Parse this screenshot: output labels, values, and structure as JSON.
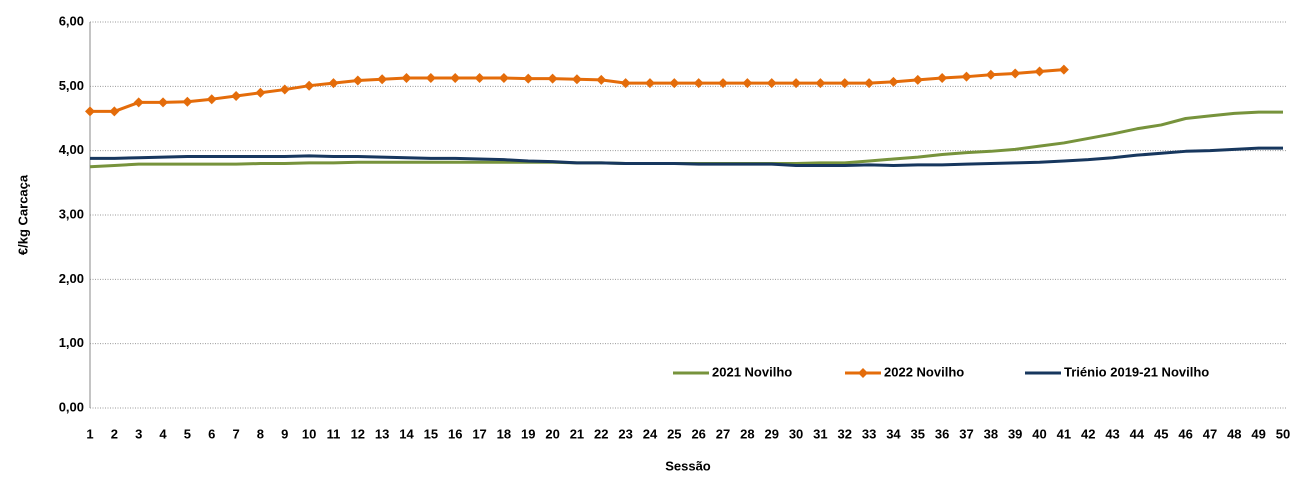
{
  "chart_data": {
    "type": "line",
    "x_label": "Sessão",
    "y_label": "€/kg Carcaça",
    "x": [
      1,
      2,
      3,
      4,
      5,
      6,
      7,
      8,
      9,
      10,
      11,
      12,
      13,
      14,
      15,
      16,
      17,
      18,
      19,
      20,
      21,
      22,
      23,
      24,
      25,
      26,
      27,
      28,
      29,
      30,
      31,
      32,
      33,
      34,
      35,
      36,
      37,
      38,
      39,
      40,
      41,
      42,
      43,
      44,
      45,
      46,
      47,
      48,
      49,
      50
    ],
    "xlim": [
      1,
      50
    ],
    "ylim": [
      0,
      6
    ],
    "yticks": [
      {
        "value": 0,
        "label": "0,00"
      },
      {
        "value": 1,
        "label": "1,00"
      },
      {
        "value": 2,
        "label": "2,00"
      },
      {
        "value": 3,
        "label": "3,00"
      },
      {
        "value": 4,
        "label": "4,00"
      },
      {
        "value": 5,
        "label": "5,00"
      },
      {
        "value": 6,
        "label": "6,00"
      }
    ],
    "grid": true,
    "legend": "bottom-right",
    "series": [
      {
        "name": "2021 Novilho",
        "color": "#77933c",
        "values": [
          3.75,
          3.77,
          3.79,
          3.79,
          3.79,
          3.79,
          3.79,
          3.8,
          3.8,
          3.81,
          3.81,
          3.82,
          3.82,
          3.82,
          3.82,
          3.82,
          3.82,
          3.82,
          3.82,
          3.82,
          3.81,
          3.81,
          3.8,
          3.8,
          3.8,
          3.8,
          3.8,
          3.8,
          3.8,
          3.8,
          3.81,
          3.81,
          3.84,
          3.87,
          3.9,
          3.94,
          3.97,
          3.99,
          4.02,
          4.07,
          4.12,
          4.19,
          4.26,
          4.34,
          4.4,
          4.5,
          4.54,
          4.58,
          4.6,
          4.6
        ]
      },
      {
        "name": "2022 Novilho",
        "color": "#e46c0a",
        "marker": "diamond",
        "values": [
          4.61,
          4.61,
          4.75,
          4.75,
          4.76,
          4.8,
          4.85,
          4.9,
          4.95,
          5.01,
          5.05,
          5.09,
          5.11,
          5.13,
          5.13,
          5.13,
          5.13,
          5.13,
          5.12,
          5.12,
          5.11,
          5.1,
          5.05,
          5.05,
          5.05,
          5.05,
          5.05,
          5.05,
          5.05,
          5.05,
          5.05,
          5.05,
          5.05,
          5.07,
          5.1,
          5.13,
          5.15,
          5.18,
          5.2,
          5.23,
          5.26,
          null,
          null,
          null,
          null,
          null,
          null,
          null,
          null,
          null
        ]
      },
      {
        "name": "Triénio 2019-21 Novilho",
        "color": "#17375e",
        "values": [
          3.88,
          3.88,
          3.89,
          3.9,
          3.91,
          3.91,
          3.91,
          3.91,
          3.91,
          3.92,
          3.91,
          3.91,
          3.9,
          3.89,
          3.88,
          3.88,
          3.87,
          3.86,
          3.84,
          3.83,
          3.81,
          3.81,
          3.8,
          3.8,
          3.8,
          3.79,
          3.79,
          3.79,
          3.79,
          3.77,
          3.77,
          3.77,
          3.78,
          3.77,
          3.78,
          3.78,
          3.79,
          3.8,
          3.81,
          3.82,
          3.84,
          3.86,
          3.89,
          3.93,
          3.96,
          3.99,
          4.0,
          4.02,
          4.04,
          4.04
        ]
      }
    ]
  }
}
